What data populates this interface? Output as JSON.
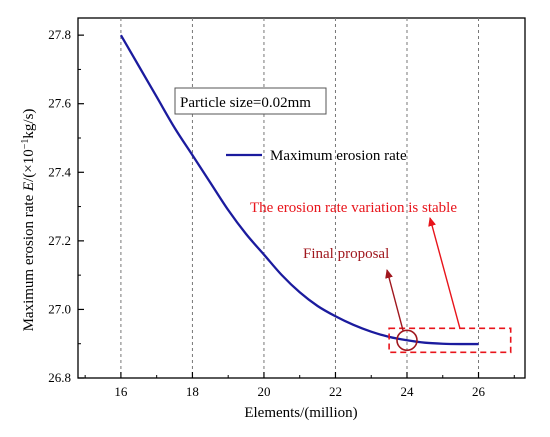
{
  "chart_data": {
    "type": "line",
    "xlabel": "Elements/(million)",
    "ylabel_main": "Maximum erosion rate ",
    "ylabel_italic": "E",
    "ylabel_unit": "/(×10",
    "ylabel_sup": "−1",
    "ylabel_end": "kg/s)",
    "xlim": [
      14.8,
      27.3
    ],
    "ylim": [
      26.8,
      27.85
    ],
    "x_ticks": [
      "16",
      "18",
      "20",
      "22",
      "24",
      "26"
    ],
    "y_ticks": [
      "26.8",
      "27.0",
      "27.2",
      "27.4",
      "27.6",
      "27.8"
    ],
    "grid": "vertical dashed",
    "series": [
      {
        "name": "Maximum erosion rate",
        "color": "#1b1b9e",
        "x": [
          16,
          16.5,
          17,
          17.5,
          18,
          18.5,
          19,
          19.5,
          20,
          20.5,
          21,
          21.5,
          22,
          22.5,
          23,
          23.5,
          24,
          24.5,
          25,
          25.5,
          26
        ],
        "y": [
          27.8,
          27.71,
          27.62,
          27.53,
          27.45,
          27.37,
          27.29,
          27.22,
          27.16,
          27.1,
          27.05,
          27.01,
          26.98,
          26.955,
          26.935,
          26.92,
          26.91,
          26.903,
          26.9,
          26.899,
          26.899
        ]
      }
    ],
    "legend_placement": "upper middle",
    "info_box": "Particle size=0.02mm",
    "annotations": {
      "stable_label": "The erosion rate variation is stable",
      "proposal_label": "Final proposal",
      "proposal_point": {
        "x": 24,
        "y": 26.91
      },
      "stable_region": {
        "x": [
          23.5,
          26.9
        ],
        "y": [
          26.875,
          26.945
        ]
      }
    },
    "colors": {
      "line": "#1b1b9e",
      "stable": "#e8141b",
      "proposal": "#a0171e"
    }
  }
}
